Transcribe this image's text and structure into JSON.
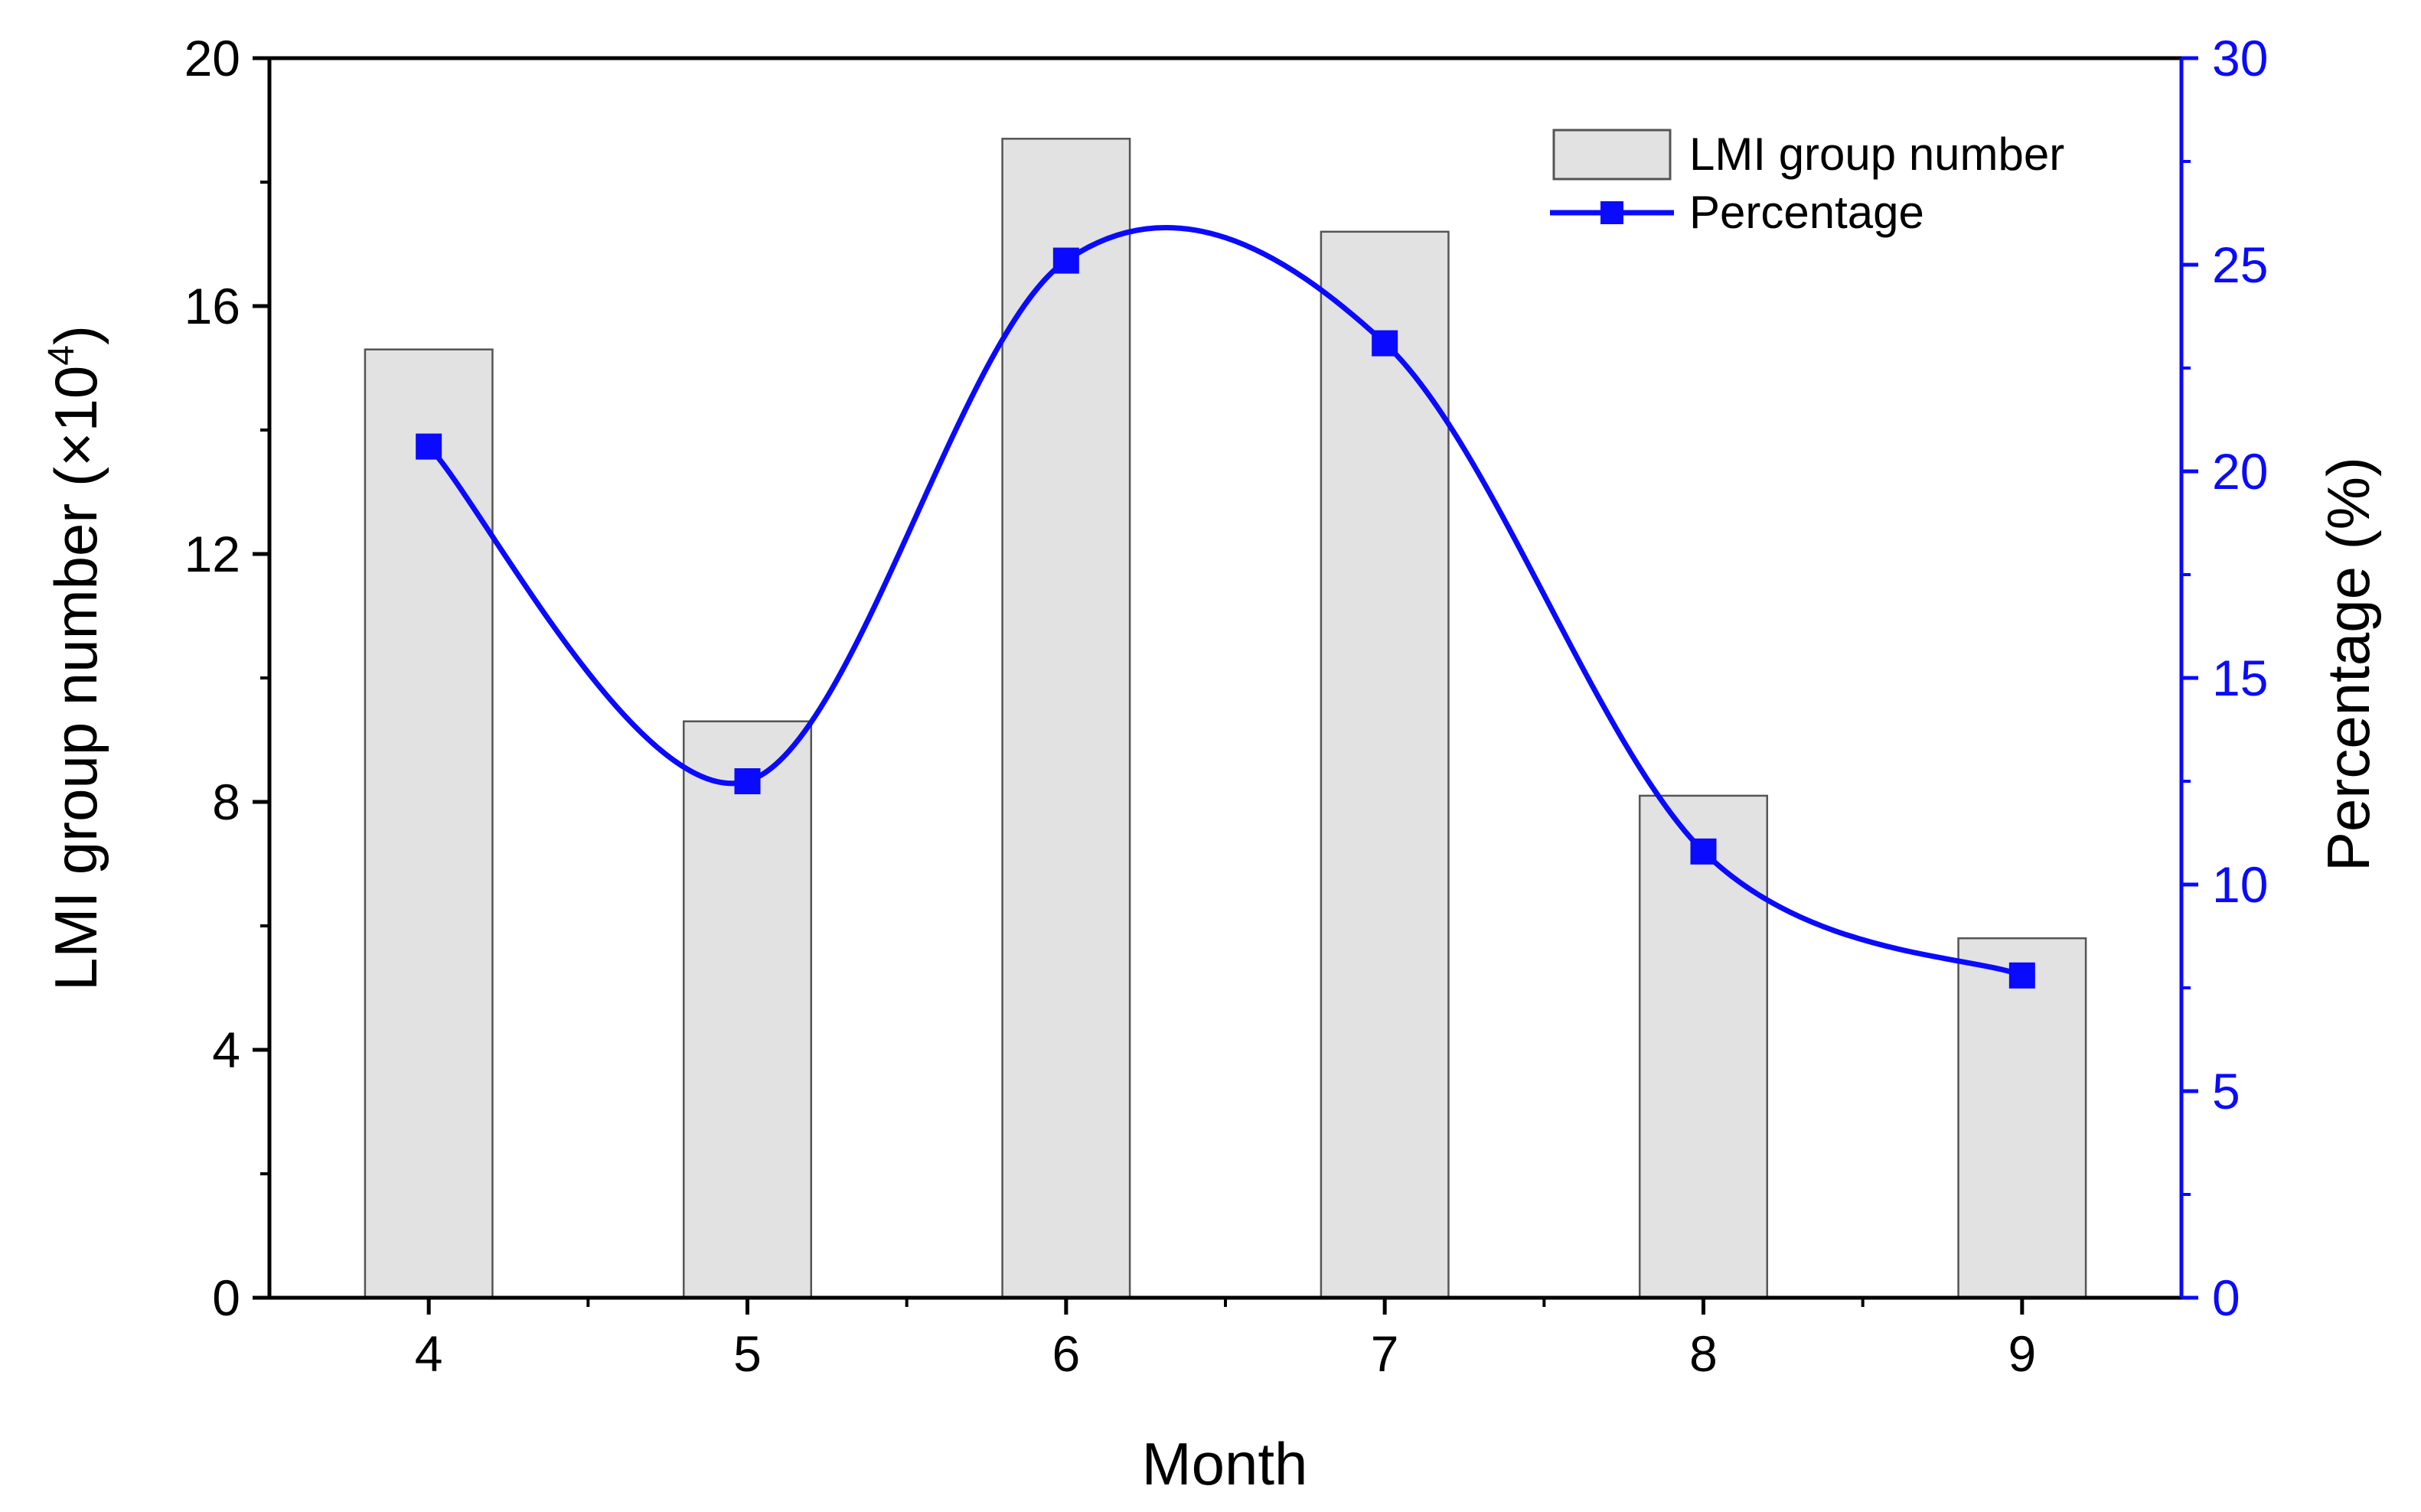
{
  "chart_data": {
    "type": "bar+line",
    "categories": [
      "4",
      "5",
      "6",
      "7",
      "8",
      "9"
    ],
    "series": [
      {
        "name": "LMI group number",
        "type": "bar",
        "axis": "left",
        "values": [
          15.3,
          9.3,
          18.7,
          17.2,
          8.1,
          5.8
        ],
        "color": "#e2e2e2",
        "edge_color": "#555555"
      },
      {
        "name": "Percentage",
        "type": "line",
        "axis": "right",
        "smooth": true,
        "marker": "square",
        "values": [
          20.6,
          12.5,
          25.1,
          23.1,
          10.8,
          7.8
        ],
        "color": "#0a0aff"
      }
    ],
    "xlabel": "Month",
    "ylabel_left": "LMI group number (×10",
    "ylabel_left_sup": "4",
    "ylabel_left_end": ")",
    "ylabel_right": "Percentage (%)",
    "ylim_left": [
      0,
      20
    ],
    "yticks_left": [
      0,
      4,
      8,
      12,
      16,
      20
    ],
    "ylim_right": [
      0,
      30
    ],
    "yticks_right": [
      0,
      5,
      10,
      15,
      20,
      25,
      30
    ],
    "right_axis_color": "#0a0aff",
    "legend": {
      "position": "top-right",
      "entries": [
        "LMI group number",
        "Percentage"
      ]
    }
  }
}
